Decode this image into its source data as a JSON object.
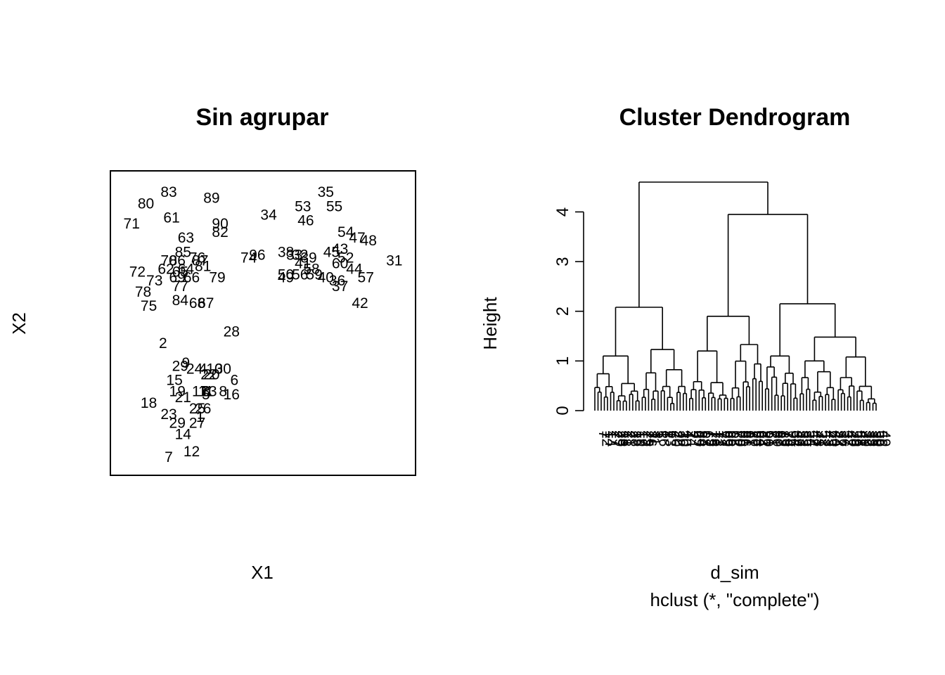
{
  "chart_data": [
    {
      "type": "scatter",
      "title": "Sin agrupar",
      "xlabel": "X1",
      "ylabel": "X2",
      "marker": "text-labels",
      "grid": false,
      "axes_shown": false,
      "xlim": [
        0,
        100
      ],
      "ylim": [
        0,
        100
      ],
      "points": [
        {
          "label": "83",
          "x": 17,
          "y": 96
        },
        {
          "label": "89",
          "x": 32,
          "y": 94
        },
        {
          "label": "80",
          "x": 9,
          "y": 92
        },
        {
          "label": "71",
          "x": 4,
          "y": 85
        },
        {
          "label": "61",
          "x": 18,
          "y": 87
        },
        {
          "label": "90",
          "x": 35,
          "y": 85
        },
        {
          "label": "82",
          "x": 35,
          "y": 82
        },
        {
          "label": "63",
          "x": 23,
          "y": 80
        },
        {
          "label": "85",
          "x": 22,
          "y": 75
        },
        {
          "label": "70",
          "x": 17,
          "y": 72
        },
        {
          "label": "86",
          "x": 20,
          "y": 72
        },
        {
          "label": "76",
          "x": 27,
          "y": 73
        },
        {
          "label": "87",
          "x": 28,
          "y": 72
        },
        {
          "label": "81",
          "x": 29,
          "y": 70
        },
        {
          "label": "62",
          "x": 16,
          "y": 69
        },
        {
          "label": "65",
          "x": 21,
          "y": 68
        },
        {
          "label": "64",
          "x": 23,
          "y": 69
        },
        {
          "label": "72",
          "x": 6,
          "y": 68
        },
        {
          "label": "73",
          "x": 12,
          "y": 65
        },
        {
          "label": "69",
          "x": 20,
          "y": 66
        },
        {
          "label": "66",
          "x": 25,
          "y": 66
        },
        {
          "label": "79",
          "x": 34,
          "y": 66
        },
        {
          "label": "77",
          "x": 21,
          "y": 63
        },
        {
          "label": "78",
          "x": 8,
          "y": 61
        },
        {
          "label": "84",
          "x": 21,
          "y": 58
        },
        {
          "label": "68",
          "x": 27,
          "y": 57
        },
        {
          "label": "67",
          "x": 30,
          "y": 57
        },
        {
          "label": "75",
          "x": 10,
          "y": 56
        },
        {
          "label": "34",
          "x": 52,
          "y": 88
        },
        {
          "label": "35",
          "x": 72,
          "y": 96
        },
        {
          "label": "53",
          "x": 64,
          "y": 91
        },
        {
          "label": "55",
          "x": 75,
          "y": 91
        },
        {
          "label": "46",
          "x": 65,
          "y": 86
        },
        {
          "label": "54",
          "x": 79,
          "y": 82
        },
        {
          "label": "47",
          "x": 83,
          "y": 80
        },
        {
          "label": "48",
          "x": 87,
          "y": 79
        },
        {
          "label": "74",
          "x": 45,
          "y": 73
        },
        {
          "label": "96",
          "x": 48,
          "y": 74
        },
        {
          "label": "38",
          "x": 58,
          "y": 75
        },
        {
          "label": "33",
          "x": 61,
          "y": 74
        },
        {
          "label": "32",
          "x": 63,
          "y": 74
        },
        {
          "label": "39",
          "x": 66,
          "y": 73
        },
        {
          "label": "45",
          "x": 74,
          "y": 75
        },
        {
          "label": "43",
          "x": 77,
          "y": 76
        },
        {
          "label": "52",
          "x": 79,
          "y": 73
        },
        {
          "label": "31",
          "x": 96,
          "y": 72
        },
        {
          "label": "41",
          "x": 64,
          "y": 71
        },
        {
          "label": "58",
          "x": 67,
          "y": 69
        },
        {
          "label": "60",
          "x": 77,
          "y": 71
        },
        {
          "label": "44",
          "x": 82,
          "y": 69
        },
        {
          "label": "50",
          "x": 58,
          "y": 67
        },
        {
          "label": "56",
          "x": 63,
          "y": 67
        },
        {
          "label": "59",
          "x": 68,
          "y": 67
        },
        {
          "label": "40",
          "x": 72,
          "y": 66
        },
        {
          "label": "36",
          "x": 76,
          "y": 65
        },
        {
          "label": "57",
          "x": 86,
          "y": 66
        },
        {
          "label": "49",
          "x": 58,
          "y": 66
        },
        {
          "label": "37",
          "x": 77,
          "y": 63
        },
        {
          "label": "42",
          "x": 84,
          "y": 57
        },
        {
          "label": "28",
          "x": 39,
          "y": 47
        },
        {
          "label": "2",
          "x": 15,
          "y": 43
        },
        {
          "label": "9",
          "x": 23,
          "y": 36
        },
        {
          "label": "29",
          "x": 21,
          "y": 35
        },
        {
          "label": "24",
          "x": 26,
          "y": 34
        },
        {
          "label": "4",
          "x": 29,
          "y": 34
        },
        {
          "label": "10",
          "x": 33,
          "y": 34
        },
        {
          "label": "30",
          "x": 36,
          "y": 34
        },
        {
          "label": "22",
          "x": 31,
          "y": 32
        },
        {
          "label": "20",
          "x": 32,
          "y": 32
        },
        {
          "label": "15",
          "x": 19,
          "y": 30
        },
        {
          "label": "6",
          "x": 40,
          "y": 30
        },
        {
          "label": "19",
          "x": 20,
          "y": 26
        },
        {
          "label": "17",
          "x": 28,
          "y": 26
        },
        {
          "label": "11",
          "x": 30,
          "y": 26
        },
        {
          "label": "13",
          "x": 31,
          "y": 26
        },
        {
          "label": "3",
          "x": 30,
          "y": 26
        },
        {
          "label": "8",
          "x": 36,
          "y": 26
        },
        {
          "label": "16",
          "x": 39,
          "y": 25
        },
        {
          "label": "5",
          "x": 30,
          "y": 25
        },
        {
          "label": "21",
          "x": 22,
          "y": 24
        },
        {
          "label": "18",
          "x": 10,
          "y": 22
        },
        {
          "label": "25",
          "x": 27,
          "y": 20
        },
        {
          "label": "26",
          "x": 29,
          "y": 20
        },
        {
          "label": "23",
          "x": 17,
          "y": 18
        },
        {
          "label": "1",
          "x": 28,
          "y": 17
        },
        {
          "label": "29",
          "x": 20,
          "y": 15
        },
        {
          "label": "27",
          "x": 27,
          "y": 15
        },
        {
          "label": "14",
          "x": 22,
          "y": 11
        },
        {
          "label": "12",
          "x": 25,
          "y": 5
        },
        {
          "label": "7",
          "x": 17,
          "y": 3
        }
      ]
    },
    {
      "type": "dendrogram",
      "title": "Cluster Dendrogram",
      "xlabel": "d_sim",
      "sub": "hclust (*, \"complete\")",
      "ylabel": "Height",
      "y_ticks": [
        0,
        1,
        2,
        3,
        4
      ],
      "ylim": [
        0,
        4.6
      ],
      "n_leaves": 90,
      "merge_heights": {
        "root": 4.6,
        "right_main": 3.95,
        "left_main": 2.08,
        "right_a": 1.9,
        "right_b": 2.15,
        "right_b2": 1.48,
        "left_a": 1.1,
        "left_b": 1.23,
        "right_a2": 1.33,
        "right_b1": 1.1,
        "right_b3": 1.08
      },
      "visible_leaf_labels": [
        "7",
        "12",
        "14",
        "1",
        "27",
        "29",
        "23",
        "18",
        "21",
        "2",
        "28",
        "15",
        "19",
        "17",
        "25",
        "26",
        "11",
        "3",
        "5",
        "16",
        "8",
        "13",
        "6",
        "20",
        "22",
        "30",
        "10",
        "4",
        "24",
        "9",
        "29",
        "84",
        "68",
        "67",
        "75",
        "78",
        "73",
        "72",
        "77",
        "69",
        "66",
        "65",
        "62",
        "70",
        "85",
        "86",
        "81",
        "87",
        "76",
        "63",
        "64",
        "82",
        "90",
        "61",
        "71",
        "80",
        "83",
        "89",
        "79",
        "74",
        "96",
        "34",
        "46",
        "53",
        "55",
        "35",
        "54",
        "47",
        "48",
        "31",
        "52",
        "43",
        "45",
        "60",
        "44",
        "57",
        "36",
        "37",
        "42",
        "40",
        "59",
        "58",
        "41",
        "39",
        "32",
        "33",
        "38",
        "50",
        "56",
        "49"
      ]
    }
  ]
}
